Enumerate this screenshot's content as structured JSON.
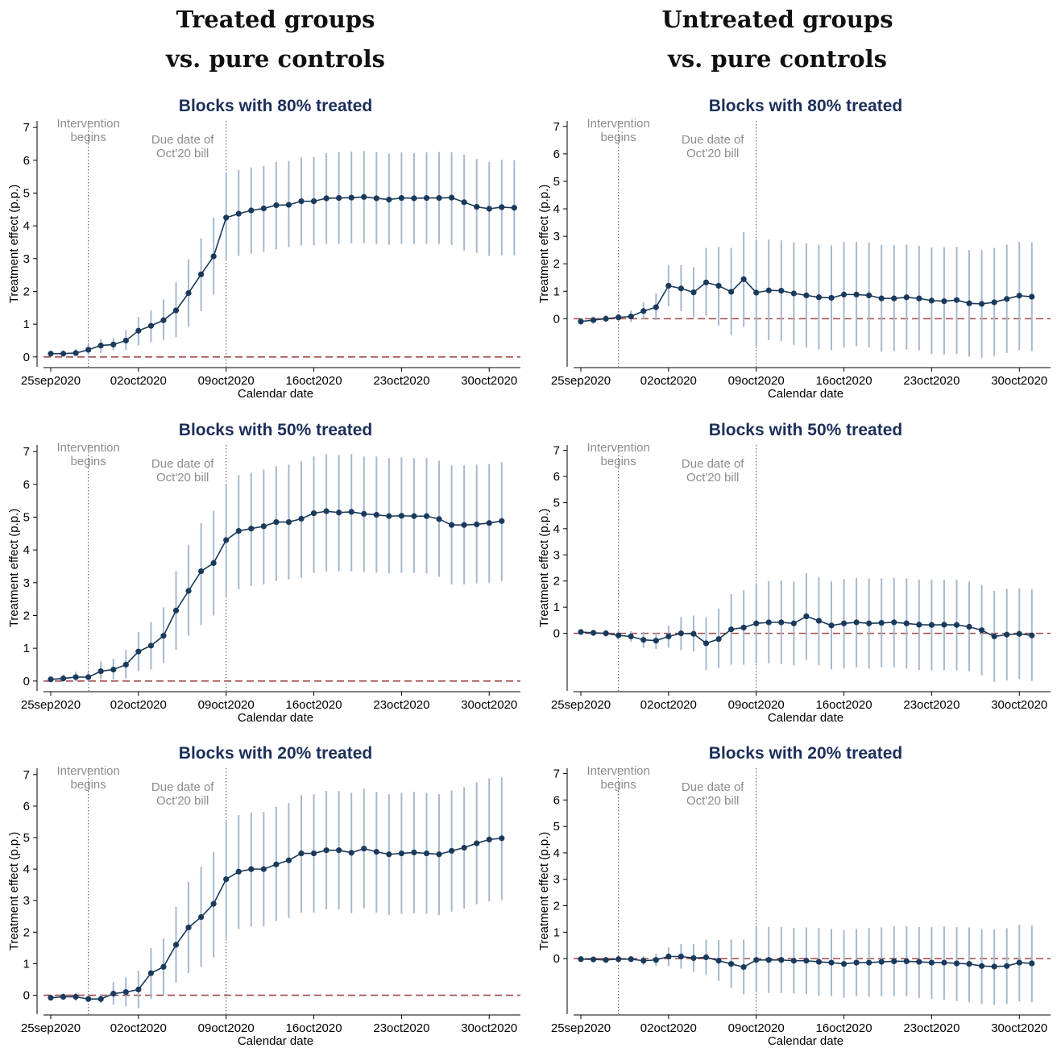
{
  "headers": {
    "left_line1": "Treated groups",
    "left_line2": "vs. pure controls",
    "right_line1": "Untreated groups",
    "right_line2": "vs. pure controls"
  },
  "style": {
    "title_color": "#1c2f5a",
    "series_color": "#1a3a5c",
    "ci_color": "#a5b9cf",
    "zero_line_color": "#a0474b",
    "annotation_color": "#8c8c8c",
    "event_line_color": "#5a6a7a"
  },
  "chart_data": [
    {
      "id": "treated-80",
      "type": "line",
      "title": "Blocks with 80% treated",
      "xlabel": "Calendar date",
      "ylabel": "Treatment effect (p.p.)",
      "x_ticks": [
        "25sep2020",
        "02oct2020",
        "09oct2020",
        "16oct2020",
        "23oct2020",
        "30oct2020"
      ],
      "y_ticks": [
        "0",
        "1",
        "2",
        "3",
        "4",
        "5",
        "6",
        "7"
      ],
      "ylim": [
        -0.3,
        7.2
      ],
      "events": [
        {
          "date_index": 3,
          "label_line1": "Intervention",
          "label_line2": "begins"
        },
        {
          "date_index": 14,
          "label_line1": "Due date of",
          "label_line2": "Oct'20 bill"
        }
      ],
      "series": [
        {
          "estimate": [
            0.1,
            0.1,
            0.12,
            0.22,
            0.35,
            0.38,
            0.5,
            0.8,
            0.95,
            1.12,
            1.42,
            1.95,
            2.52,
            3.07,
            4.25,
            4.37,
            4.47,
            4.53,
            4.63,
            4.64,
            4.75,
            4.75,
            4.84,
            4.85,
            4.86,
            4.88,
            4.84,
            4.8,
            4.85,
            4.84,
            4.85,
            4.85,
            4.86,
            4.72,
            4.58,
            4.52,
            4.57,
            4.55
          ],
          "ci_low": [
            0.05,
            0.02,
            0.03,
            0.05,
            0.12,
            0.2,
            0.22,
            0.35,
            0.45,
            0.52,
            0.6,
            0.92,
            1.4,
            1.9,
            2.95,
            3.08,
            3.15,
            3.2,
            3.28,
            3.35,
            3.4,
            3.4,
            3.45,
            3.45,
            3.47,
            3.47,
            3.45,
            3.42,
            3.45,
            3.45,
            3.45,
            3.45,
            3.42,
            3.25,
            3.17,
            3.08,
            3.1,
            3.1
          ],
          "ci_high": [
            0.15,
            0.2,
            0.24,
            0.38,
            0.55,
            0.58,
            0.82,
            1.22,
            1.42,
            1.75,
            2.28,
            2.98,
            3.62,
            4.25,
            5.6,
            5.7,
            5.78,
            5.83,
            5.95,
            5.98,
            6.08,
            6.1,
            6.22,
            6.25,
            6.26,
            6.28,
            6.25,
            6.2,
            6.24,
            6.22,
            6.24,
            6.25,
            6.25,
            6.17,
            6.04,
            5.95,
            6.02,
            6.0
          ]
        }
      ]
    },
    {
      "id": "untreated-80",
      "type": "line",
      "title": "Blocks with 80% treated",
      "xlabel": "Calendar date",
      "ylabel": "Treatment effect (p.p.)",
      "x_ticks": [
        "25sep2020",
        "02oct2020",
        "09oct2020",
        "16oct2020",
        "23oct2020",
        "30oct2020"
      ],
      "y_ticks": [
        "0",
        "1",
        "2",
        "3",
        "4",
        "5",
        "6",
        "7"
      ],
      "ylim": [
        -1.75,
        7.2
      ],
      "events": [
        {
          "date_index": 3,
          "label_line1": "Intervention",
          "label_line2": "begins"
        },
        {
          "date_index": 14,
          "label_line1": "Due date of",
          "label_line2": "Oct'20 bill"
        }
      ],
      "series": [
        {
          "estimate": [
            -0.1,
            -0.05,
            0.0,
            0.05,
            0.08,
            0.28,
            0.42,
            1.2,
            1.1,
            0.96,
            1.32,
            1.2,
            0.98,
            1.44,
            0.95,
            1.03,
            1.02,
            0.92,
            0.85,
            0.78,
            0.76,
            0.88,
            0.88,
            0.85,
            0.74,
            0.74,
            0.78,
            0.74,
            0.66,
            0.64,
            0.68,
            0.56,
            0.54,
            0.6,
            0.72,
            0.84,
            0.8
          ],
          "ci_low": [
            -0.22,
            -0.18,
            -0.12,
            -0.08,
            -0.12,
            -0.02,
            -0.05,
            0.45,
            0.28,
            0.05,
            0.1,
            -0.25,
            -0.6,
            -0.3,
            -1.0,
            -0.78,
            -0.82,
            -0.95,
            -1.05,
            -1.12,
            -1.15,
            -1.05,
            -1.0,
            -1.05,
            -1.2,
            -1.18,
            -1.12,
            -1.15,
            -1.28,
            -1.3,
            -1.28,
            -1.38,
            -1.42,
            -1.35,
            -1.25,
            -1.15,
            -1.18
          ],
          "ci_high": [
            0.02,
            0.08,
            0.12,
            0.18,
            0.3,
            0.6,
            0.92,
            1.95,
            1.95,
            1.88,
            2.58,
            2.62,
            2.58,
            3.15,
            2.88,
            2.88,
            2.85,
            2.78,
            2.75,
            2.68,
            2.67,
            2.8,
            2.8,
            2.78,
            2.68,
            2.68,
            2.7,
            2.65,
            2.6,
            2.6,
            2.62,
            2.5,
            2.5,
            2.58,
            2.7,
            2.8,
            2.78
          ]
        }
      ]
    },
    {
      "id": "treated-50",
      "type": "line",
      "title": "Blocks with 50% treated",
      "xlabel": "Calendar date",
      "ylabel": "Treatment effect (p.p.)",
      "x_ticks": [
        "25sep2020",
        "02oct2020",
        "09oct2020",
        "16oct2020",
        "23oct2020",
        "30oct2020"
      ],
      "y_ticks": [
        "0",
        "1",
        "2",
        "3",
        "4",
        "5",
        "6",
        "7"
      ],
      "ylim": [
        -0.3,
        7.2
      ],
      "events": [
        {
          "date_index": 3,
          "label_line1": "Intervention",
          "label_line2": "begins"
        },
        {
          "date_index": 14,
          "label_line1": "Due date of",
          "label_line2": "Oct'20 bill"
        }
      ],
      "series": [
        {
          "estimate": [
            0.05,
            0.08,
            0.12,
            0.12,
            0.3,
            0.35,
            0.5,
            0.9,
            1.08,
            1.38,
            2.15,
            2.75,
            3.35,
            3.6,
            4.3,
            4.58,
            4.65,
            4.72,
            4.85,
            4.85,
            4.95,
            5.12,
            5.18,
            5.14,
            5.16,
            5.1,
            5.07,
            5.03,
            5.04,
            5.03,
            5.03,
            4.94,
            4.76,
            4.76,
            4.78,
            4.82,
            4.88
          ],
          "ci_low": [
            0.0,
            -0.02,
            -0.02,
            0.0,
            0.05,
            0.05,
            0.08,
            0.3,
            0.35,
            0.55,
            0.95,
            1.38,
            1.7,
            2.0,
            2.55,
            2.8,
            2.9,
            2.95,
            3.05,
            3.1,
            3.15,
            3.3,
            3.35,
            3.35,
            3.35,
            3.33,
            3.3,
            3.28,
            3.3,
            3.3,
            3.28,
            3.18,
            2.95,
            2.95,
            2.98,
            3.0,
            3.05
          ],
          "ci_high": [
            0.12,
            0.2,
            0.28,
            0.28,
            0.6,
            0.68,
            0.95,
            1.5,
            1.8,
            2.25,
            3.35,
            4.15,
            4.82,
            5.2,
            6.0,
            6.28,
            6.35,
            6.45,
            6.55,
            6.6,
            6.7,
            6.85,
            6.92,
            6.9,
            6.92,
            6.85,
            6.85,
            6.8,
            6.82,
            6.8,
            6.8,
            6.72,
            6.58,
            6.58,
            6.6,
            6.62,
            6.68
          ]
        }
      ]
    },
    {
      "id": "untreated-50",
      "type": "line",
      "title": "Blocks with 50% treated",
      "xlabel": "Calendar date",
      "ylabel": "Treatment effect (p.p.)",
      "x_ticks": [
        "25sep2020",
        "02oct2020",
        "09oct2020",
        "16oct2020",
        "23oct2020",
        "30oct2020"
      ],
      "y_ticks": [
        "0",
        "1",
        "2",
        "3",
        "4",
        "5",
        "6",
        "7"
      ],
      "ylim": [
        -2.2,
        7.2
      ],
      "events": [
        {
          "date_index": 3,
          "label_line1": "Intervention",
          "label_line2": "begins"
        },
        {
          "date_index": 14,
          "label_line1": "Due date of",
          "label_line2": "Oct'20 bill"
        }
      ],
      "series": [
        {
          "estimate": [
            0.05,
            0.02,
            0.0,
            -0.08,
            -0.12,
            -0.25,
            -0.28,
            -0.12,
            0.0,
            -0.02,
            -0.38,
            -0.22,
            0.15,
            0.22,
            0.38,
            0.42,
            0.42,
            0.38,
            0.65,
            0.48,
            0.3,
            0.38,
            0.42,
            0.38,
            0.4,
            0.42,
            0.38,
            0.33,
            0.32,
            0.33,
            0.32,
            0.25,
            0.12,
            -0.12,
            -0.05,
            -0.02,
            -0.08
          ],
          "ci_low": [
            -0.05,
            -0.1,
            -0.12,
            -0.25,
            -0.32,
            -0.55,
            -0.6,
            -0.55,
            -0.65,
            -0.7,
            -1.4,
            -1.32,
            -1.2,
            -1.2,
            -1.15,
            -1.15,
            -1.18,
            -1.22,
            -1.02,
            -1.22,
            -1.38,
            -1.35,
            -1.3,
            -1.35,
            -1.3,
            -1.3,
            -1.35,
            -1.4,
            -1.42,
            -1.4,
            -1.42,
            -1.45,
            -1.6,
            -1.85,
            -1.8,
            -1.75,
            -1.82
          ],
          "ci_high": [
            0.15,
            0.12,
            0.12,
            0.1,
            0.08,
            0.05,
            0.02,
            0.3,
            0.62,
            0.68,
            0.62,
            0.95,
            1.5,
            1.65,
            1.92,
            2.0,
            2.02,
            1.98,
            2.3,
            2.15,
            1.98,
            2.08,
            2.12,
            2.1,
            2.1,
            2.12,
            2.1,
            2.05,
            2.05,
            2.05,
            2.05,
            1.98,
            1.85,
            1.62,
            1.7,
            1.72,
            1.68
          ]
        }
      ]
    },
    {
      "id": "treated-20",
      "type": "line",
      "title": "Blocks with 20% treated",
      "xlabel": "Calendar date",
      "ylabel": "Treatment effect (p.p.)",
      "x_ticks": [
        "25sep2020",
        "02oct2020",
        "09oct2020",
        "16oct2020",
        "23oct2020",
        "30oct2020"
      ],
      "y_ticks": [
        "0",
        "1",
        "2",
        "3",
        "4",
        "5",
        "6",
        "7"
      ],
      "ylim": [
        -0.6,
        7.2
      ],
      "events": [
        {
          "date_index": 3,
          "label_line1": "Intervention",
          "label_line2": "begins"
        },
        {
          "date_index": 14,
          "label_line1": "Due date of",
          "label_line2": "Oct'20 bill"
        }
      ],
      "series": [
        {
          "estimate": [
            -0.08,
            -0.05,
            -0.05,
            -0.12,
            -0.12,
            0.05,
            0.1,
            0.18,
            0.7,
            0.9,
            1.6,
            2.15,
            2.48,
            2.9,
            3.68,
            3.92,
            4.0,
            4.0,
            4.15,
            4.28,
            4.5,
            4.5,
            4.6,
            4.6,
            4.52,
            4.65,
            4.55,
            4.47,
            4.5,
            4.53,
            4.5,
            4.47,
            4.58,
            4.68,
            4.82,
            4.94,
            4.98
          ],
          "ci_low": [
            -0.15,
            -0.15,
            -0.18,
            -0.22,
            -0.25,
            -0.3,
            -0.35,
            -0.42,
            -0.12,
            0.0,
            0.4,
            0.7,
            0.9,
            1.2,
            1.8,
            2.1,
            2.18,
            2.18,
            2.35,
            2.45,
            2.62,
            2.62,
            2.72,
            2.72,
            2.6,
            2.75,
            2.62,
            2.55,
            2.58,
            2.6,
            2.58,
            2.55,
            2.65,
            2.75,
            2.88,
            2.98,
            3.02
          ],
          "ci_high": [
            0.0,
            0.05,
            0.08,
            0.02,
            0.02,
            0.42,
            0.58,
            0.78,
            1.5,
            1.8,
            2.8,
            3.6,
            4.08,
            4.55,
            5.5,
            5.72,
            5.8,
            5.82,
            5.98,
            6.1,
            6.35,
            6.38,
            6.48,
            6.48,
            6.42,
            6.55,
            6.45,
            6.38,
            6.42,
            6.45,
            6.42,
            6.38,
            6.5,
            6.6,
            6.75,
            6.88,
            6.92
          ]
        }
      ]
    },
    {
      "id": "untreated-20",
      "type": "line",
      "title": "Blocks with 20% treated",
      "xlabel": "Calendar date",
      "ylabel": "Treatment effect (p.p.)",
      "x_ticks": [
        "25sep2020",
        "02oct2020",
        "09oct2020",
        "16oct2020",
        "23oct2020",
        "30oct2020"
      ],
      "y_ticks": [
        "0",
        "1",
        "2",
        "3",
        "4",
        "5",
        "6",
        "7"
      ],
      "ylim": [
        -2.1,
        7.2
      ],
      "events": [
        {
          "date_index": 3,
          "label_line1": "Intervention",
          "label_line2": "begins"
        },
        {
          "date_index": 14,
          "label_line1": "Due date of",
          "label_line2": "Oct'20 bill"
        }
      ],
      "series": [
        {
          "estimate": [
            -0.02,
            -0.03,
            -0.05,
            -0.02,
            -0.02,
            -0.08,
            -0.05,
            0.08,
            0.08,
            0.02,
            0.05,
            -0.08,
            -0.2,
            -0.32,
            -0.05,
            -0.05,
            -0.05,
            -0.08,
            -0.08,
            -0.12,
            -0.15,
            -0.2,
            -0.15,
            -0.15,
            -0.12,
            -0.1,
            -0.1,
            -0.12,
            -0.15,
            -0.15,
            -0.18,
            -0.2,
            -0.28,
            -0.3,
            -0.28,
            -0.15,
            -0.18
          ],
          "ci_low": [
            -0.08,
            -0.08,
            -0.1,
            -0.12,
            -0.12,
            -0.25,
            -0.28,
            -0.28,
            -0.38,
            -0.5,
            -0.62,
            -0.85,
            -1.12,
            -1.35,
            -1.28,
            -1.3,
            -1.3,
            -1.32,
            -1.35,
            -1.4,
            -1.42,
            -1.48,
            -1.42,
            -1.45,
            -1.42,
            -1.42,
            -1.42,
            -1.48,
            -1.52,
            -1.55,
            -1.6,
            -1.65,
            -1.72,
            -1.75,
            -1.72,
            -1.62,
            -1.65
          ],
          "ci_high": [
            0.03,
            0.02,
            0.0,
            0.08,
            0.08,
            0.1,
            0.18,
            0.42,
            0.55,
            0.55,
            0.72,
            0.7,
            0.72,
            0.72,
            1.18,
            1.2,
            1.2,
            1.16,
            1.18,
            1.16,
            1.12,
            1.08,
            1.12,
            1.15,
            1.18,
            1.22,
            1.22,
            1.2,
            1.2,
            1.22,
            1.2,
            1.18,
            1.12,
            1.1,
            1.15,
            1.28,
            1.25
          ]
        }
      ]
    }
  ]
}
